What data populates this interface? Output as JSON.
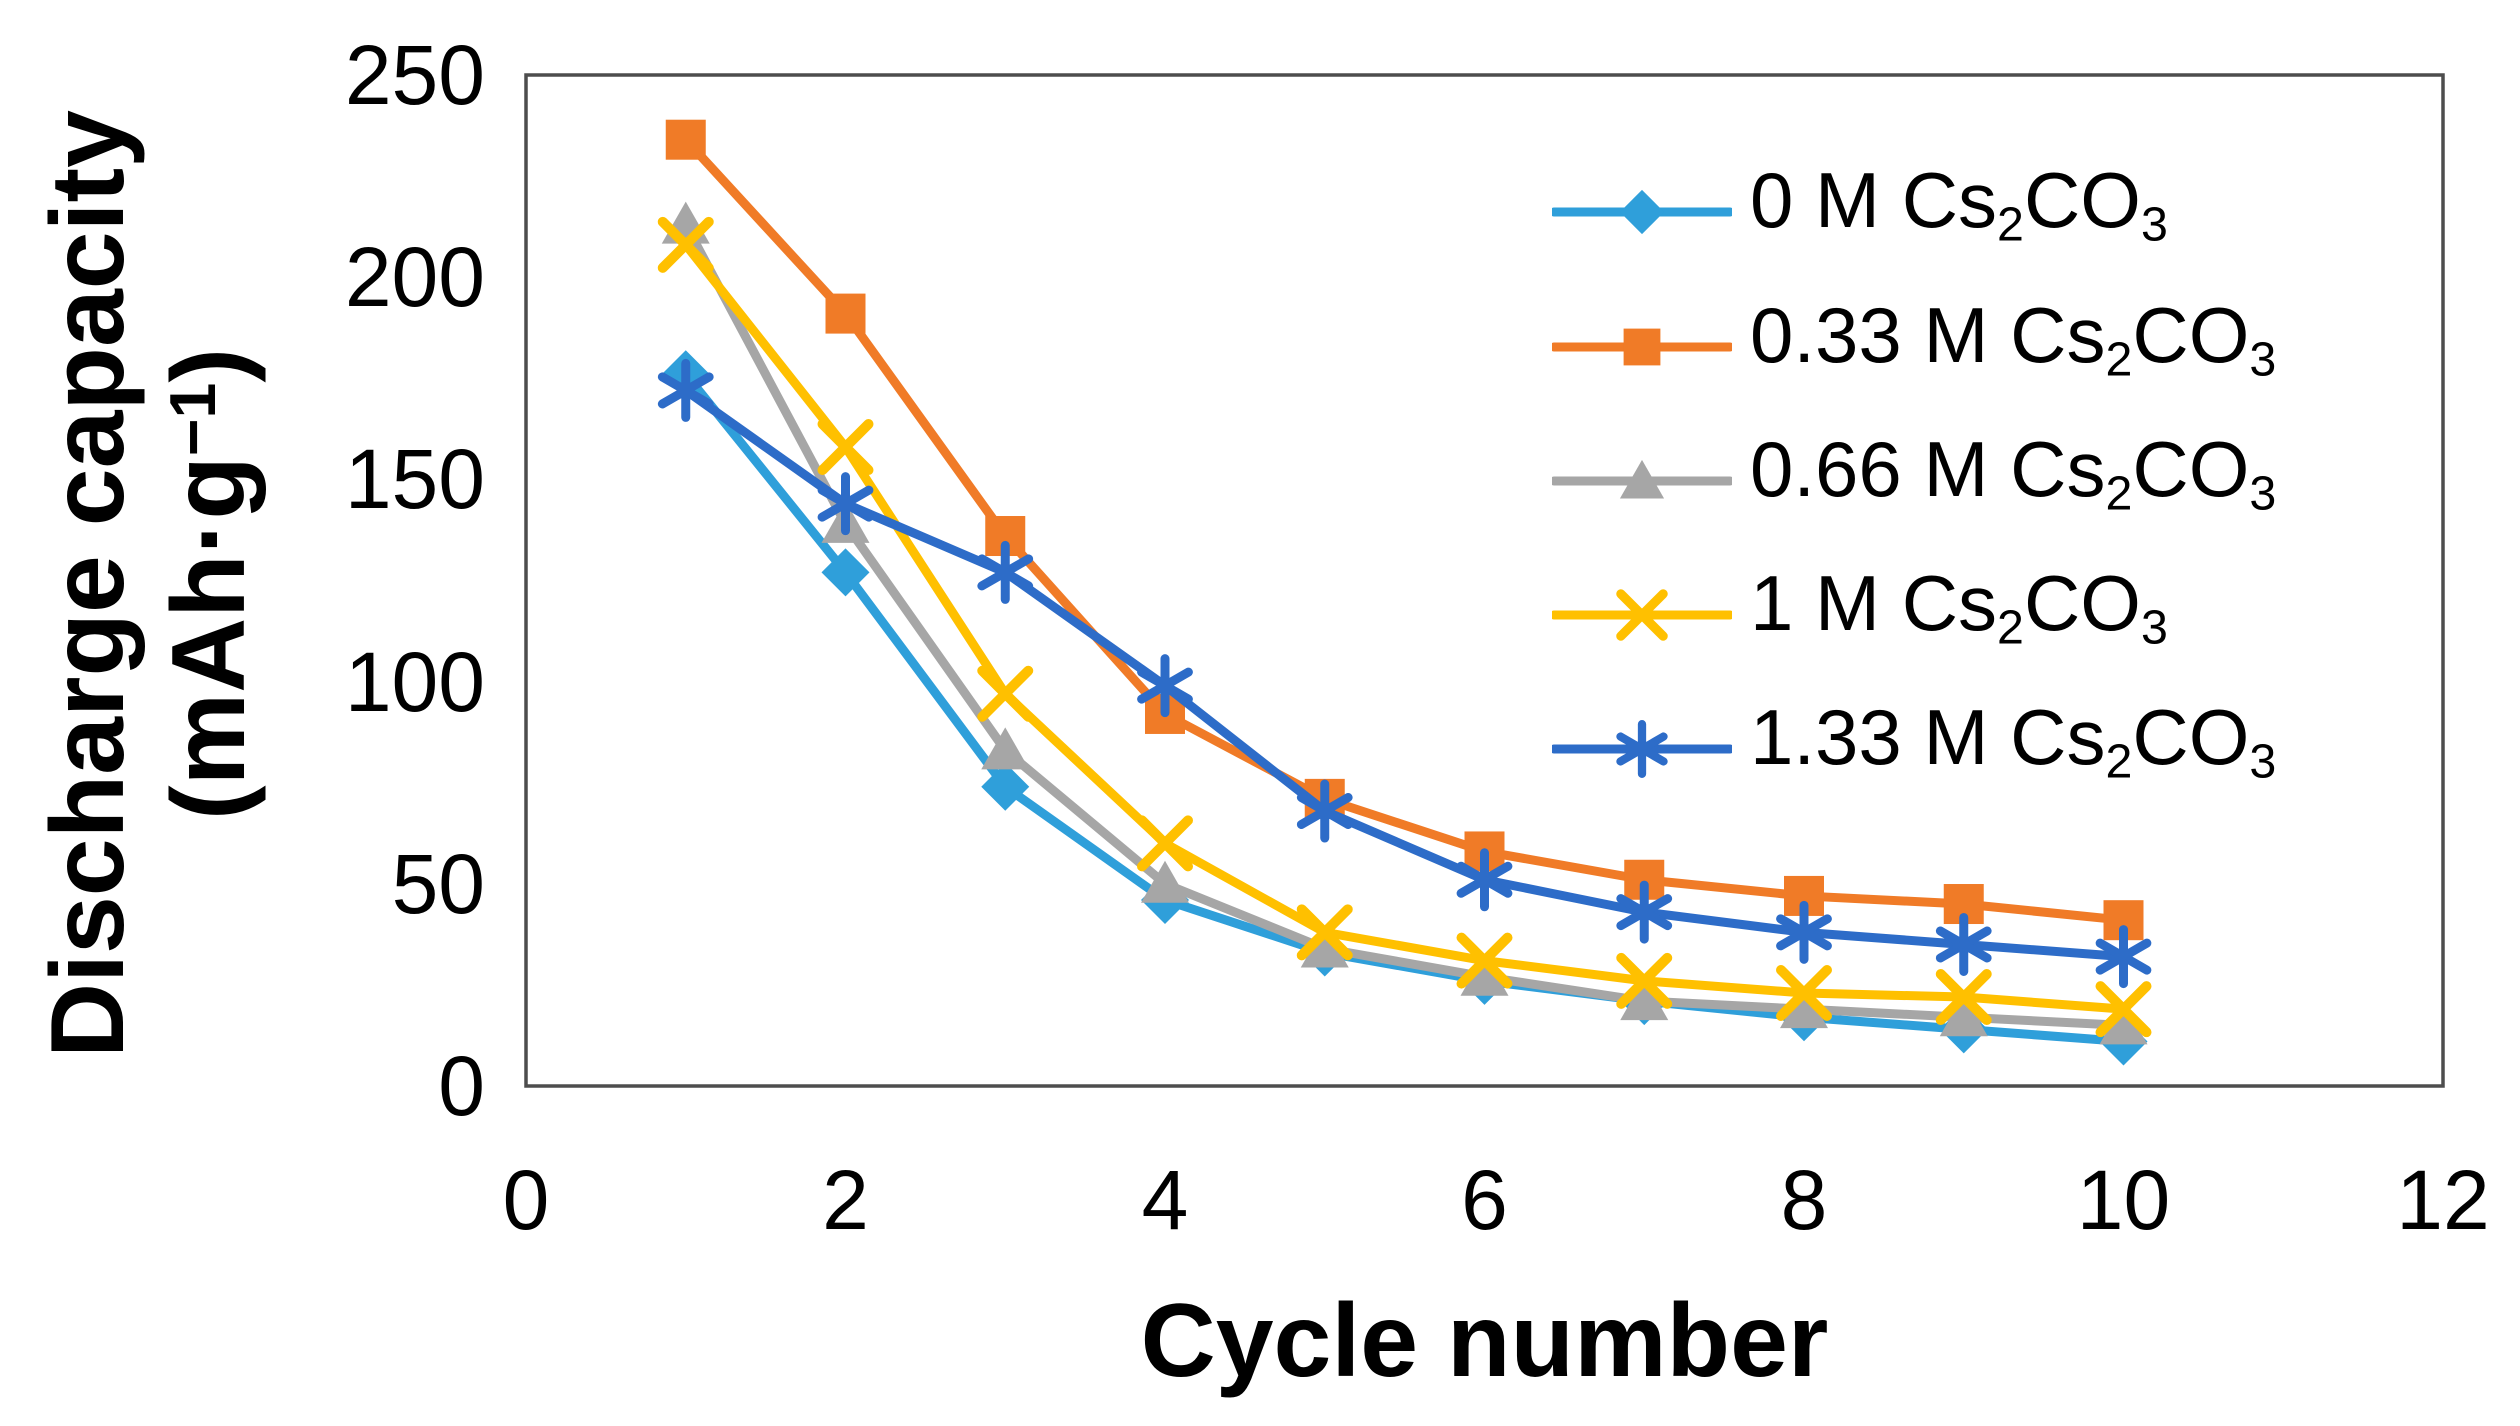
{
  "figure": {
    "y_axis_title_line1": "Discharge capacity",
    "y_axis_title_line2_rich": [
      {
        "t": "(mAh·g"
      },
      {
        "t": "−1",
        "sup": true
      },
      {
        "t": ")"
      }
    ],
    "x_axis_title": "Cycle number"
  },
  "chart_data": {
    "type": "line",
    "title": "",
    "xlabel": "Cycle number",
    "ylabel": "Discharge capacity (mAh·g−1)",
    "xlim": [
      0,
      12
    ],
    "ylim": [
      0,
      250
    ],
    "x_ticks": [
      0,
      2,
      4,
      6,
      8,
      10,
      12
    ],
    "y_ticks": [
      250,
      200,
      150,
      100,
      50,
      0
    ],
    "grid": false,
    "legend_position": "inside-top-right",
    "x": [
      1,
      2,
      3,
      4,
      5,
      6,
      7,
      8,
      9,
      10
    ],
    "series": [
      {
        "name": "0 M Cs2CO3",
        "label_rich": [
          {
            "t": "0 M Cs"
          },
          {
            "t": "2",
            "sub": true
          },
          {
            "t": "CO"
          },
          {
            "t": "3",
            "sub": true
          }
        ],
        "marker": "diamond",
        "color": "#2F9FDA",
        "values": [
          176,
          127,
          74,
          46,
          33,
          26,
          21,
          17,
          14,
          11
        ]
      },
      {
        "name": "0.33 M Cs2CO3",
        "label_rich": [
          {
            "t": "0.33 M Cs"
          },
          {
            "t": "2",
            "sub": true
          },
          {
            "t": "CO"
          },
          {
            "t": "3",
            "sub": true
          }
        ],
        "marker": "square",
        "color": "#F07B27",
        "values": [
          234,
          191,
          136,
          92,
          71,
          58,
          51,
          47,
          45,
          41
        ]
      },
      {
        "name": "0.66 M Cs2CO3",
        "label_rich": [
          {
            "t": "0.66 M Cs"
          },
          {
            "t": "2",
            "sub": true
          },
          {
            "t": "CO"
          },
          {
            "t": "3",
            "sub": true
          }
        ],
        "marker": "triangle",
        "color": "#A6A6A6",
        "values": [
          213,
          139,
          83,
          50,
          34,
          27,
          21,
          19,
          17,
          15
        ]
      },
      {
        "name": "1 M Cs2CO3",
        "label_rich": [
          {
            "t": "1 M Cs"
          },
          {
            "t": "2",
            "sub": true
          },
          {
            "t": "CO"
          },
          {
            "t": "3",
            "sub": true
          }
        ],
        "marker": "x",
        "color": "#FFC000",
        "values": [
          208,
          158,
          97,
          60,
          38,
          31,
          26,
          23,
          22,
          19
        ]
      },
      {
        "name": "1.33 M Cs2CO3",
        "label_rich": [
          {
            "t": "1.33 M Cs"
          },
          {
            "t": "2",
            "sub": true
          },
          {
            "t": "CO"
          },
          {
            "t": "3",
            "sub": true
          }
        ],
        "marker": "asterisk",
        "color": "#2D6CC8",
        "values": [
          172,
          144,
          127,
          99,
          68,
          51,
          43,
          38,
          35,
          32
        ]
      }
    ]
  }
}
